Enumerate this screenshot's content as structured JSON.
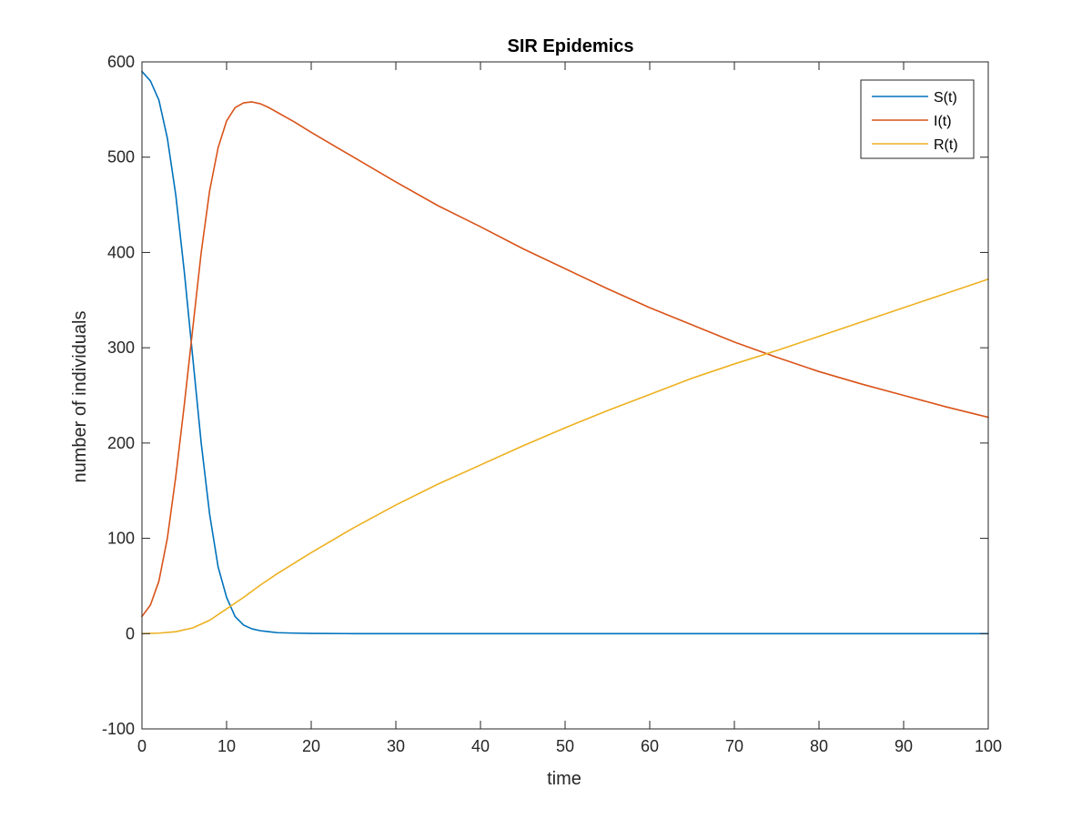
{
  "chart_data": {
    "type": "line",
    "title": "SIR Epidemics",
    "xlabel": "time",
    "ylabel": "number of individuals",
    "xlim": [
      0,
      100
    ],
    "ylim": [
      -100,
      600
    ],
    "xticks": [
      0,
      10,
      20,
      30,
      40,
      50,
      60,
      70,
      80,
      90,
      100
    ],
    "yticks": [
      -100,
      0,
      100,
      200,
      300,
      400,
      500,
      600
    ],
    "grid": false,
    "legend_position": "top-right",
    "series": [
      {
        "name": "S(t)",
        "color": "#0072BD",
        "x": [
          0,
          1,
          2,
          3,
          4,
          5,
          6,
          7,
          8,
          9,
          10,
          11,
          12,
          13,
          14,
          15,
          16,
          18,
          20,
          25,
          30,
          40,
          50,
          60,
          70,
          80,
          90,
          100
        ],
        "y": [
          590,
          580,
          560,
          520,
          460,
          380,
          290,
          200,
          125,
          70,
          38,
          18,
          9,
          5,
          3,
          2,
          1,
          0.5,
          0.2,
          0,
          0,
          0,
          0,
          0,
          0,
          0,
          0,
          0
        ]
      },
      {
        "name": "I(t)",
        "color": "#D95319",
        "x": [
          0,
          1,
          2,
          3,
          4,
          5,
          6,
          7,
          8,
          9,
          10,
          11,
          12,
          13,
          14,
          15,
          16,
          18,
          20,
          25,
          30,
          35,
          40,
          45,
          50,
          55,
          60,
          65,
          70,
          75,
          80,
          85,
          90,
          95,
          100
        ],
        "y": [
          18,
          30,
          55,
          100,
          165,
          240,
          320,
          400,
          465,
          510,
          538,
          552,
          557,
          558,
          556,
          552,
          547,
          537,
          526,
          500,
          474,
          449,
          427,
          404,
          383,
          362,
          342,
          324,
          306,
          290,
          275,
          262,
          250,
          238,
          227
        ]
      },
      {
        "name": "R(t)",
        "color": "#EDB120",
        "x": [
          0,
          2,
          4,
          6,
          8,
          10,
          12,
          14,
          16,
          18,
          20,
          25,
          30,
          35,
          40,
          45,
          50,
          55,
          60,
          65,
          70,
          75,
          80,
          85,
          90,
          95,
          100
        ],
        "y": [
          0,
          0.5,
          2,
          6,
          14,
          26,
          38,
          51,
          63,
          74,
          85,
          111,
          135,
          157,
          177,
          197,
          216,
          234,
          251,
          268,
          283,
          297,
          312,
          327,
          342,
          357,
          372
        ]
      }
    ]
  }
}
